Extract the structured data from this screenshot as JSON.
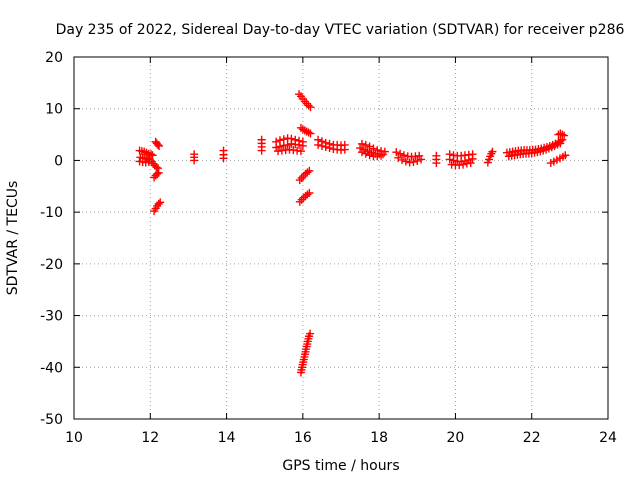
{
  "chart_data": {
    "type": "scatter",
    "title": "Day 235 of 2022, Sidereal Day-to-day VTEC variation (SDTVAR) for receiver p286",
    "xlabel": "GPS time / hours",
    "ylabel": "SDTVAR / TECUs",
    "xlim": [
      10,
      24
    ],
    "ylim": [
      -50,
      20
    ],
    "xticks": [
      10,
      12,
      14,
      16,
      18,
      20,
      22,
      24
    ],
    "yticks": [
      -50,
      -40,
      -30,
      -20,
      -10,
      0,
      10,
      20
    ],
    "grid": true,
    "marker": "plus",
    "color": "#ff0000",
    "segments": [
      {
        "x": [
          11.72,
          11.78,
          11.84,
          11.9,
          11.96,
          12.02,
          12.06
        ],
        "y": [
          1.9,
          1.8,
          1.7,
          1.5,
          1.3,
          1.2,
          1.0
        ]
      },
      {
        "x": [
          11.72,
          11.8,
          11.88,
          11.96,
          12.04
        ],
        "y": [
          -0.2,
          -0.3,
          -0.4,
          -0.3,
          -0.2
        ]
      },
      {
        "x": [
          11.74,
          11.8,
          11.86,
          11.92,
          11.98
        ],
        "y": [
          0.6,
          0.5,
          0.4,
          0.3,
          0.2
        ]
      },
      {
        "x": [
          12.14,
          12.17,
          12.2,
          12.23
        ],
        "y": [
          3.6,
          3.3,
          3.0,
          2.8
        ]
      },
      {
        "x": [
          12.08,
          12.12,
          12.16,
          12.2
        ],
        "y": [
          -0.6,
          -1.0,
          -1.3,
          -1.5
        ]
      },
      {
        "x": [
          12.1,
          12.14,
          12.18,
          12.22
        ],
        "y": [
          -3.3,
          -2.9,
          -2.6,
          -2.4
        ]
      },
      {
        "x": [
          12.1,
          12.14,
          12.18,
          12.22,
          12.26
        ],
        "y": [
          -9.8,
          -9.3,
          -8.8,
          -8.4,
          -8.1
        ]
      },
      {
        "x": [
          13.15,
          13.15,
          13.15
        ],
        "y": [
          0.0,
          0.6,
          1.2
        ]
      },
      {
        "x": [
          13.92,
          13.92,
          13.92
        ],
        "y": [
          0.4,
          1.1,
          1.9
        ]
      },
      {
        "x": [
          14.92,
          14.92,
          14.92,
          14.92
        ],
        "y": [
          1.9,
          2.6,
          3.3,
          4.0
        ]
      },
      {
        "x": [
          15.3,
          15.4,
          15.5,
          15.6,
          15.7,
          15.8,
          15.9,
          16.0
        ],
        "y": [
          2.5,
          2.7,
          2.9,
          3.0,
          3.2,
          3.1,
          3.0,
          2.8
        ]
      },
      {
        "x": [
          15.3,
          15.4,
          15.5,
          15.6,
          15.7,
          15.8,
          15.9,
          16.0
        ],
        "y": [
          3.6,
          3.9,
          4.1,
          4.3,
          4.2,
          4.0,
          3.8,
          3.6
        ]
      },
      {
        "x": [
          15.35,
          15.45,
          15.55,
          15.65,
          15.75,
          15.85,
          15.95
        ],
        "y": [
          1.8,
          1.9,
          2.0,
          2.1,
          2.0,
          1.9,
          1.8
        ]
      },
      {
        "x": [
          15.9,
          15.95,
          16.0,
          16.05,
          16.1,
          16.15,
          16.2
        ],
        "y": [
          12.8,
          12.4,
          11.9,
          11.4,
          11.0,
          10.6,
          10.3
        ]
      },
      {
        "x": [
          15.95,
          16.0,
          16.05,
          16.1,
          16.15,
          16.2
        ],
        "y": [
          6.3,
          6.0,
          5.8,
          5.6,
          5.4,
          5.2
        ]
      },
      {
        "x": [
          15.92,
          15.97,
          16.02,
          16.07,
          16.12,
          16.17
        ],
        "y": [
          -3.8,
          -3.4,
          -3.0,
          -2.6,
          -2.3,
          -2.0
        ]
      },
      {
        "x": [
          15.92,
          15.97,
          16.02,
          16.07,
          16.12,
          16.17
        ],
        "y": [
          -8.0,
          -7.6,
          -7.2,
          -6.9,
          -6.6,
          -6.3
        ]
      },
      {
        "x": [
          15.95,
          15.98,
          16.01,
          16.04,
          16.07,
          16.1,
          16.13,
          16.16,
          16.19
        ],
        "y": [
          -41.0,
          -40.0,
          -39.0,
          -38.0,
          -37.0,
          -36.0,
          -35.0,
          -34.0,
          -33.5
        ]
      },
      {
        "x": [
          16.4,
          16.5,
          16.6,
          16.7,
          16.8,
          16.9,
          17.0,
          17.1
        ],
        "y": [
          4.0,
          3.7,
          3.4,
          3.2,
          3.0,
          3.0,
          2.9,
          3.0
        ]
      },
      {
        "x": [
          16.4,
          16.5,
          16.6,
          16.7,
          16.8,
          16.9,
          17.0,
          17.1
        ],
        "y": [
          3.0,
          2.8,
          2.6,
          2.4,
          2.2,
          2.1,
          2.0,
          2.1
        ]
      },
      {
        "x": [
          17.55,
          17.65,
          17.75,
          17.85,
          17.95,
          18.05,
          18.15
        ],
        "y": [
          3.2,
          3.0,
          2.7,
          2.3,
          2.0,
          1.8,
          1.7
        ]
      },
      {
        "x": [
          17.5,
          17.6,
          17.7,
          17.8,
          17.9,
          18.0,
          18.1
        ],
        "y": [
          2.4,
          2.1,
          1.8,
          1.5,
          1.3,
          1.2,
          1.2
        ]
      },
      {
        "x": [
          17.55,
          17.65,
          17.75,
          17.85,
          17.95,
          18.05
        ],
        "y": [
          1.6,
          1.3,
          1.0,
          0.8,
          0.8,
          0.9
        ]
      },
      {
        "x": [
          18.45,
          18.55,
          18.65,
          18.75,
          18.85,
          18.95,
          19.05
        ],
        "y": [
          1.6,
          1.3,
          1.0,
          0.8,
          0.7,
          0.8,
          0.9
        ]
      },
      {
        "x": [
          18.5,
          18.6,
          18.7,
          18.8,
          18.9,
          19.0,
          19.1
        ],
        "y": [
          0.5,
          0.1,
          -0.2,
          -0.4,
          -0.3,
          -0.1,
          0.2
        ]
      },
      {
        "x": [
          19.5,
          19.5,
          19.5
        ],
        "y": [
          -0.5,
          0.2,
          0.9
        ]
      },
      {
        "x": [
          19.85,
          19.95,
          20.05,
          20.15,
          20.25,
          20.35,
          20.45
        ],
        "y": [
          1.2,
          1.0,
          0.9,
          0.9,
          1.0,
          1.1,
          1.2
        ]
      },
      {
        "x": [
          19.85,
          19.95,
          20.05,
          20.15,
          20.25,
          20.35,
          20.45
        ],
        "y": [
          0.2,
          0.0,
          -0.2,
          -0.2,
          -0.1,
          0.1,
          0.3
        ]
      },
      {
        "x": [
          19.9,
          20.0,
          20.1,
          20.2,
          20.3,
          20.4
        ],
        "y": [
          -0.8,
          -0.9,
          -0.9,
          -0.8,
          -0.6,
          -0.5
        ]
      },
      {
        "x": [
          20.85,
          20.88,
          20.91,
          20.94,
          20.97
        ],
        "y": [
          -0.4,
          0.2,
          0.8,
          1.3,
          1.7
        ]
      },
      {
        "x": [
          21.35,
          21.5,
          21.65,
          21.8,
          21.95,
          22.1,
          22.25,
          22.4,
          22.55,
          22.7,
          22.8
        ],
        "y": [
          1.5,
          1.7,
          1.9,
          2.0,
          2.0,
          2.1,
          2.3,
          2.6,
          3.0,
          3.5,
          4.0
        ]
      },
      {
        "x": [
          21.4,
          21.55,
          21.7,
          21.85,
          22.0,
          22.15,
          22.3,
          22.45,
          22.6,
          22.75
        ],
        "y": [
          0.8,
          1.0,
          1.2,
          1.3,
          1.4,
          1.6,
          1.9,
          2.3,
          2.8,
          3.3
        ]
      },
      {
        "x": [
          22.7,
          22.75,
          22.8,
          22.85
        ],
        "y": [
          5.0,
          5.2,
          5.0,
          4.8
        ]
      },
      {
        "x": [
          22.5,
          22.58,
          22.66,
          22.74,
          22.82,
          22.88
        ],
        "y": [
          -0.5,
          -0.2,
          0.1,
          0.4,
          0.7,
          1.0
        ]
      }
    ]
  }
}
